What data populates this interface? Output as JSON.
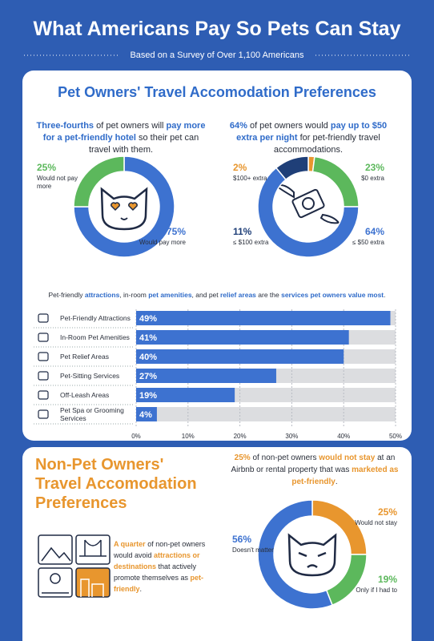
{
  "header": {
    "title": "What Americans Pay So Pets Can Stay",
    "subtitle": "Based on a Survey of Over 1,100 Americans"
  },
  "pet_owners": {
    "heading": "Pet Owners' Travel Accomodation Preferences",
    "emphasis_color": "#2f6bc9",
    "hotel_text": [
      {
        "text": "Three-fourths",
        "em": true
      },
      {
        "text": " of pet owners will ",
        "em": false
      },
      {
        "text": "pay more for a pet-friendly hotel",
        "em": true
      },
      {
        "text": " so their pet can travel with them.",
        "em": false
      }
    ],
    "extra_text": [
      {
        "text": "64%",
        "em": true
      },
      {
        "text": " of pet owners would ",
        "em": false
      },
      {
        "text": "pay up to $50 extra per night",
        "em": true
      },
      {
        "text": " for pet-friendly travel accommodations.",
        "em": false
      }
    ],
    "services_text": [
      {
        "text": "Pet-friendly ",
        "em": false
      },
      {
        "text": "attractions",
        "em": true
      },
      {
        "text": ", in-room ",
        "em": false
      },
      {
        "text": "pet amenities",
        "em": true
      },
      {
        "text": ", and pet ",
        "em": false
      },
      {
        "text": "relief areas",
        "em": true
      },
      {
        "text": " are the ",
        "em": false
      },
      {
        "text": "services pet owners value most",
        "em": true
      },
      {
        "text": ".",
        "em": false
      }
    ]
  },
  "non_pet_owners": {
    "heading": "Non-Pet Owners' Travel Accomodation Preferences",
    "emphasis_color": "#e8962e",
    "stay_text": [
      {
        "text": "25%",
        "em": true
      },
      {
        "text": " of non-pet owners ",
        "em": false
      },
      {
        "text": "would not stay",
        "em": true
      },
      {
        "text": " at an Airbnb or rental property that was ",
        "em": false
      },
      {
        "text": "marketed as pet-friendly",
        "em": true
      },
      {
        "text": ".",
        "em": false
      }
    ],
    "avoid_text": [
      {
        "text": "A quarter",
        "em": true
      },
      {
        "text": " of non-pet owners would avoid ",
        "em": false
      },
      {
        "text": "attractions or destinations",
        "em": true
      },
      {
        "text": " that actively promote themselves as ",
        "em": false
      },
      {
        "text": "pet-friendly",
        "em": true
      },
      {
        "text": ".",
        "em": false
      }
    ]
  },
  "chart_data": [
    {
      "type": "donut",
      "categories": [
        "Would pay more",
        "Would not pay more"
      ],
      "values": [
        75,
        25
      ],
      "value_labels": [
        "75%",
        "25%"
      ],
      "colors": [
        "#3d72d0",
        "#5cb85c"
      ]
    },
    {
      "type": "donut",
      "categories": [
        "$100+ extra",
        "$0 extra",
        "≤ $50 extra",
        "≤ $100 extra"
      ],
      "values": [
        2,
        23,
        64,
        11
      ],
      "value_labels": [
        "2%",
        "23%",
        "64%",
        "11%"
      ],
      "colors": [
        "#e8962e",
        "#5cb85c",
        "#3d72d0",
        "#1f3f78"
      ]
    },
    {
      "type": "bar",
      "orientation": "horizontal",
      "categories": [
        "Pet-Friendly Attractions",
        "In-Room Pet Amenities",
        "Pet Relief Areas",
        "Pet-Sitting Services",
        "Off-Leash Areas",
        "Pet Spa or Grooming Services"
      ],
      "values": [
        49,
        41,
        40,
        27,
        19,
        4
      ],
      "value_labels": [
        "49%",
        "41%",
        "40%",
        "27%",
        "19%",
        "4%"
      ],
      "color": "#3d72d0",
      "xlim": [
        0,
        50
      ],
      "xticks": [
        {
          "value": 0,
          "label": "0%"
        },
        {
          "value": 10,
          "label": "10%"
        },
        {
          "value": 20,
          "label": "20%"
        },
        {
          "value": 30,
          "label": "30%"
        },
        {
          "value": 40,
          "label": "40%"
        },
        {
          "value": 50,
          "label": "50%"
        }
      ],
      "grid": true
    },
    {
      "type": "donut",
      "categories": [
        "Would not stay",
        "Only if I had to",
        "Doesn't matter"
      ],
      "values": [
        25,
        19,
        56
      ],
      "value_labels": [
        "25%",
        "19%",
        "56%"
      ],
      "colors": [
        "#e8962e",
        "#5cb85c",
        "#3d72d0"
      ]
    }
  ]
}
